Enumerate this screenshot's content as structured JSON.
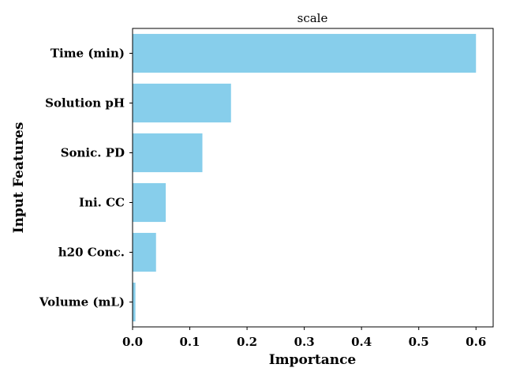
{
  "chart_data": {
    "type": "bar",
    "orientation": "horizontal",
    "title": "scale",
    "xlabel": "Importance",
    "ylabel": "Input Features",
    "categories": [
      "Time (min)",
      "Solution pH",
      "Sonic. PD",
      "Ini. CC",
      "h20 Conc.",
      "Volume (mL)"
    ],
    "values": [
      0.6,
      0.172,
      0.122,
      0.058,
      0.041,
      0.005
    ],
    "xlim": [
      0.0,
      0.63
    ],
    "xticks": [
      0.0,
      0.1,
      0.2,
      0.3,
      0.4,
      0.5,
      0.6
    ],
    "xtick_labels": [
      "0.0",
      "0.1",
      "0.2",
      "0.3",
      "0.4",
      "0.5",
      "0.6"
    ],
    "bar_color": "#87CEEB",
    "grid": false,
    "legend": "none"
  }
}
